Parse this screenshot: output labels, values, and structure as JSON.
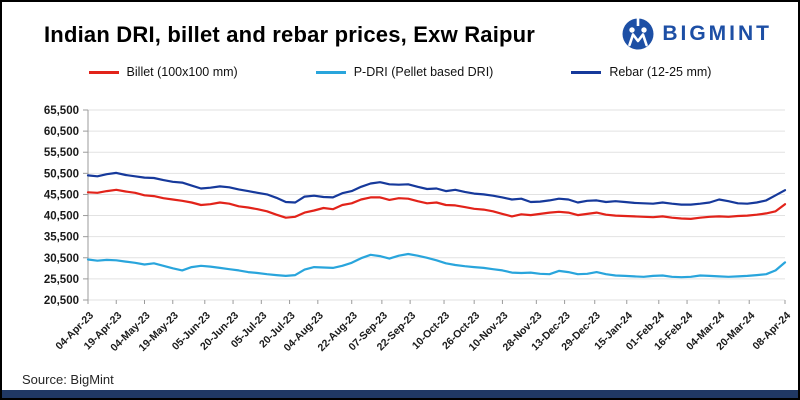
{
  "header": {
    "title": "Indian DRI, billet and rebar prices, Exw Raipur",
    "brand": "BIGMINT"
  },
  "legend": [
    {
      "label": "Billet (100x100 mm)",
      "color": "#e2231a"
    },
    {
      "label": "P-DRI (Pellet based DRI)",
      "color": "#29a5dc"
    },
    {
      "label": "Rebar (12-25 mm)",
      "color": "#16399b"
    }
  ],
  "source": "Source: BigMint",
  "colors": {
    "billet": "#e2231a",
    "pdri": "#29a5dc",
    "rebar": "#16399b",
    "brand_blue": "#1d4fa5",
    "bottom_bar": "#203864",
    "gridline": "#e2e2e2",
    "axis": "#9b9b9b",
    "tick_text": "#1a1a1a"
  },
  "chart_data": {
    "type": "line",
    "title": "Indian DRI, billet and rebar prices, Exw Raipur",
    "xlabel": "",
    "ylabel": "",
    "ylim": [
      20500,
      65500
    ],
    "grid": "horizontal",
    "legend_position": "top",
    "y_ticks": [
      20500,
      25500,
      30500,
      35500,
      40500,
      45500,
      50500,
      55500,
      60500,
      65500
    ],
    "y_tick_labels": [
      "20,500",
      "25,500",
      "30,500",
      "35,500",
      "40,500",
      "45,500",
      "50,500",
      "55,500",
      "60,500",
      "65,500"
    ],
    "x_tick_labels": [
      "04-Apr-23",
      "19-Apr-23",
      "04-May-23",
      "19-May-23",
      "05-Jun-23",
      "20-Jun-23",
      "05-Jul-23",
      "20-Jul-23",
      "04-Aug-23",
      "22-Aug-23",
      "07-Sep-23",
      "22-Sep-23",
      "10-Oct-23",
      "26-Oct-23",
      "10-Nov-23",
      "28-Nov-23",
      "13-Dec-23",
      "29-Dec-23",
      "15-Jan-24",
      "01-Feb-24",
      "16-Feb-24",
      "04-Mar-24",
      "20-Mar-24",
      "08-Apr-24"
    ],
    "x_tick_days": [
      0,
      15,
      30,
      45,
      62,
      77,
      92,
      107,
      122,
      140,
      156,
      171,
      189,
      205,
      220,
      238,
      253,
      269,
      286,
      303,
      318,
      335,
      351,
      370
    ],
    "day_step": 5,
    "x_max_day": 370,
    "series": [
      {
        "id": "billet",
        "name": "Billet (100x100 mm)",
        "color": "#e2231a",
        "values": [
          46000,
          45900,
          46300,
          46600,
          46200,
          45900,
          45300,
          45100,
          44600,
          44300,
          44000,
          43600,
          43000,
          43200,
          43600,
          43300,
          42700,
          42400,
          42000,
          41500,
          40700,
          40000,
          40200,
          41200,
          41700,
          42300,
          42000,
          43000,
          43400,
          44300,
          44800,
          44800,
          44200,
          44600,
          44500,
          43900,
          43400,
          43600,
          43000,
          42900,
          42500,
          42100,
          41900,
          41500,
          40900,
          40300,
          40800,
          40600,
          40900,
          41200,
          41400,
          41200,
          40600,
          40900,
          41200,
          40700,
          40500,
          40400,
          40300,
          40200,
          40100,
          40300,
          40000,
          39800,
          39700,
          40000,
          40200,
          40300,
          40200,
          40400,
          40500,
          40700,
          41000,
          41500,
          43200
        ]
      },
      {
        "id": "pdri",
        "name": "P-DRI (Pellet based DRI)",
        "color": "#29a5dc",
        "values": [
          30100,
          29800,
          30000,
          29900,
          29600,
          29300,
          28900,
          29200,
          28600,
          28000,
          27500,
          28300,
          28600,
          28400,
          28100,
          27800,
          27500,
          27100,
          26900,
          26600,
          26400,
          26200,
          26400,
          27700,
          28300,
          28200,
          28100,
          28600,
          29300,
          30400,
          31200,
          30900,
          30300,
          31000,
          31400,
          31000,
          30500,
          29900,
          29200,
          28800,
          28500,
          28300,
          28100,
          27800,
          27500,
          27000,
          26900,
          27000,
          26700,
          26600,
          27400,
          27100,
          26600,
          26700,
          27100,
          26600,
          26300,
          26200,
          26100,
          26000,
          26200,
          26300,
          26000,
          25900,
          26000,
          26300,
          26200,
          26100,
          26000,
          26100,
          26200,
          26400,
          26600,
          27500,
          29400
        ]
      },
      {
        "id": "rebar",
        "name": "Rebar (12-25 mm)",
        "color": "#16399b",
        "values": [
          50000,
          49800,
          50300,
          50600,
          50100,
          49800,
          49500,
          49400,
          48900,
          48500,
          48300,
          47600,
          46900,
          47100,
          47400,
          47200,
          46700,
          46300,
          45900,
          45500,
          44700,
          43700,
          43600,
          45000,
          45200,
          44900,
          44800,
          45800,
          46300,
          47300,
          48100,
          48400,
          47900,
          47800,
          47900,
          47300,
          46800,
          46900,
          46300,
          46600,
          46100,
          45700,
          45500,
          45200,
          44800,
          44300,
          44500,
          43700,
          43800,
          44100,
          44500,
          44300,
          43600,
          44000,
          44100,
          43700,
          43900,
          43700,
          43500,
          43400,
          43300,
          43600,
          43300,
          43100,
          43100,
          43300,
          43600,
          44300,
          43900,
          43400,
          43300,
          43600,
          44100,
          45300,
          46500
        ]
      }
    ]
  }
}
